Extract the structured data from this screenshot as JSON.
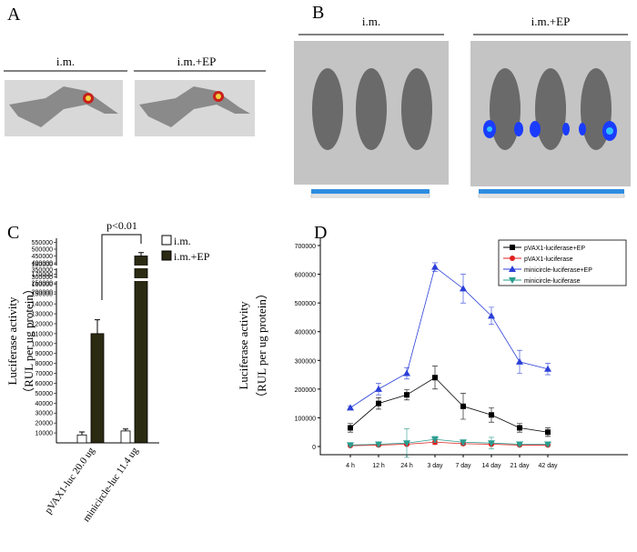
{
  "panel_labels": [
    "A",
    "B",
    "C",
    "D"
  ],
  "panel_a": {
    "groups": [
      "i.m.",
      "i.m.+EP"
    ]
  },
  "panel_b": {
    "groups": [
      "i.m.",
      "i.m.+EP"
    ]
  },
  "chart_data": [
    {
      "type": "bar",
      "categories": [
        "pVAX1-luc 20.0 ug",
        "minicircle-luc 11.4 ug"
      ],
      "ylabel": [
        "Luciferase  activity",
        "（RUL per ug protein）"
      ],
      "annotation": "p<0.01",
      "series": [
        {
          "name": "i.m.",
          "color": "#ffffff",
          "values": [
            8000,
            12000
          ],
          "errors": [
            3000,
            2000
          ]
        },
        {
          "name": "i.m.+EP",
          "color": "#2b2a12",
          "values": [
            110000,
            450000
          ],
          "errors": [
            14000,
            25000
          ]
        }
      ],
      "y_segments": [
        {
          "ylim": [
            0,
            185000
          ],
          "yticks": [
            10000,
            20000,
            30000,
            40000,
            50000,
            60000,
            70000,
            80000,
            90000,
            100000,
            110000,
            120000,
            130000,
            140000,
            150000,
            160000,
            170000,
            180000
          ]
        },
        {
          "ylim": [
            190000,
            260000
          ],
          "yticks": [
            200000,
            250000
          ]
        },
        {
          "ylim": [
            290000,
            360000
          ],
          "yticks": [
            300000,
            350000
          ]
        },
        {
          "ylim": [
            380000,
            560000
          ],
          "yticks": [
            400000,
            450000,
            500000,
            550000
          ]
        }
      ]
    },
    {
      "type": "line",
      "categories": [
        "4 h",
        "12 h",
        "24 h",
        "3 day",
        "7 day",
        "14 day",
        "21 day",
        "42 day"
      ],
      "ylabel": [
        "Luciferase  activity",
        "（RUL per ug protein）"
      ],
      "ylim": [
        0,
        700000
      ],
      "yticks": [
        0,
        100000,
        200000,
        300000,
        400000,
        500000,
        600000,
        700000
      ],
      "series": [
        {
          "name": "pVAX1-luciferase+EP",
          "color": "#000000",
          "marker": "square",
          "values": [
            65000,
            150000,
            180000,
            240000,
            140000,
            110000,
            65000,
            50000
          ],
          "errors": [
            15000,
            20000,
            18000,
            40000,
            45000,
            25000,
            15000,
            15000
          ]
        },
        {
          "name": "pVAX1-luciferase",
          "color": "#e02020",
          "marker": "circle",
          "values": [
            3000,
            5000,
            8000,
            15000,
            10000,
            8000,
            5000,
            5000
          ],
          "errors": [
            2000,
            3000,
            4000,
            8000,
            5000,
            4000,
            3000,
            3000
          ]
        },
        {
          "name": "minicircle-luciferase+EP",
          "color": "#2a3fd8",
          "marker": "triangle",
          "values": [
            135000,
            200000,
            255000,
            625000,
            550000,
            455000,
            295000,
            270000
          ],
          "errors": [
            5000,
            20000,
            20000,
            15000,
            50000,
            30000,
            40000,
            20000
          ]
        },
        {
          "name": "minicircle-luciferase",
          "color": "#2a9d8f",
          "marker": "triangle-down",
          "values": [
            5000,
            8000,
            12000,
            25000,
            15000,
            12000,
            8000,
            8000
          ],
          "errors": [
            3000,
            8000,
            50000,
            10000,
            8000,
            20000,
            5000,
            5000
          ]
        }
      ]
    }
  ]
}
